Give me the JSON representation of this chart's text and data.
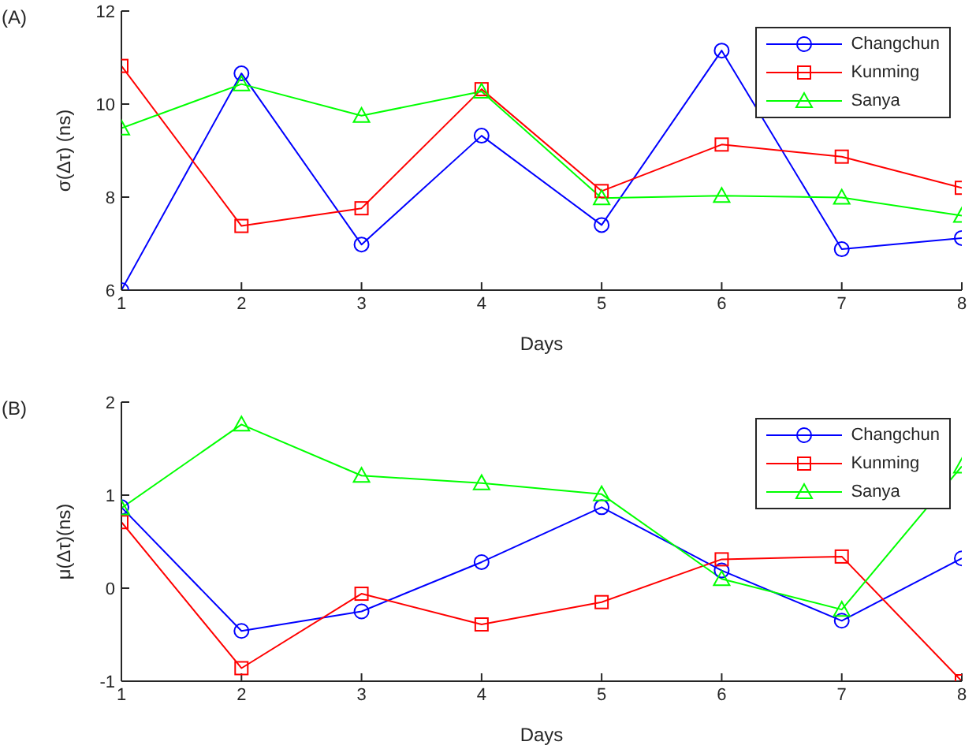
{
  "chart_data": [
    {
      "type": "line",
      "title": "(A)",
      "xlabel": "Days",
      "ylabel": "σ(Δτ) (ns)",
      "x": [
        1,
        2,
        3,
        4,
        5,
        6,
        7,
        8
      ],
      "xlim": [
        1,
        8
      ],
      "xticks": [
        1,
        2,
        3,
        4,
        5,
        6,
        7,
        8
      ],
      "ylim": [
        6,
        12
      ],
      "yticks": [
        6,
        8,
        10,
        12
      ],
      "grid": false,
      "legend": "top right",
      "line_style": "solid",
      "series": [
        {
          "name": "Changchun",
          "color": "#0000ff",
          "marker": "circle",
          "values": [
            6,
            10.66,
            6.98,
            9.32,
            7.4,
            11.15,
            6.88,
            7.12
          ]
        },
        {
          "name": "Kunming",
          "color": "#ff0000",
          "marker": "square",
          "values": [
            10.82,
            7.38,
            7.76,
            10.32,
            8.13,
            9.13,
            8.87,
            8.2
          ]
        },
        {
          "name": "Sanya",
          "color": "#00ff00",
          "marker": "triangle",
          "values": [
            9.48,
            10.43,
            9.75,
            10.27,
            7.98,
            8.03,
            7.99,
            7.6
          ]
        }
      ]
    },
    {
      "type": "line",
      "title": "(B)",
      "xlabel": "Days",
      "ylabel": "μ(Δτ)(ns)",
      "x": [
        1,
        2,
        3,
        4,
        5,
        6,
        7,
        8
      ],
      "xlim": [
        1,
        8
      ],
      "xticks": [
        1,
        2,
        3,
        4,
        5,
        6,
        7,
        8
      ],
      "ylim": [
        -1,
        2
      ],
      "yticks": [
        -1,
        0,
        1,
        2
      ],
      "grid": false,
      "legend": "top right",
      "line_style": "solid",
      "series": [
        {
          "name": "Changchun",
          "color": "#0000ff",
          "marker": "circle",
          "values": [
            0.87,
            -0.46,
            -0.25,
            0.28,
            0.87,
            0.19,
            -0.35,
            0.32
          ]
        },
        {
          "name": "Kunming",
          "color": "#ff0000",
          "marker": "square",
          "values": [
            0.71,
            -0.86,
            -0.06,
            -0.39,
            -0.15,
            0.31,
            0.34,
            -1
          ]
        },
        {
          "name": "Sanya",
          "color": "#00ff00",
          "marker": "triangle",
          "values": [
            0.86,
            1.76,
            1.21,
            1.13,
            1.01,
            0.1,
            -0.23,
            1.31
          ]
        }
      ]
    }
  ]
}
